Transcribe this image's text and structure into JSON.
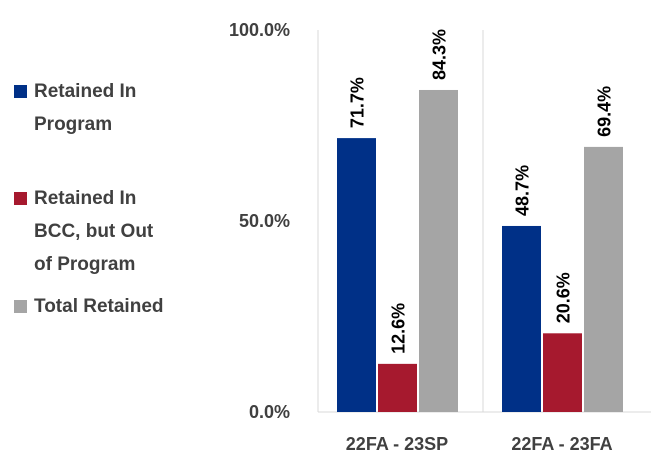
{
  "chart_data": {
    "type": "bar",
    "categories": [
      "22FA - 23SP",
      "22FA - 23FA"
    ],
    "series": [
      {
        "name": "Retained In Program",
        "color": "#003087",
        "values": [
          71.7,
          48.7
        ],
        "value_labels": [
          "71.7%",
          "48.7%"
        ]
      },
      {
        "name": "Retained In BCC, but Out of Program",
        "color": "#A6192E",
        "values": [
          12.6,
          20.6
        ],
        "value_labels": [
          "12.6%",
          "20.6%"
        ]
      },
      {
        "name": "Total Retained",
        "color": "#A5A5A5",
        "values": [
          84.3,
          69.4
        ],
        "value_labels": [
          "84.3%",
          "69.4%"
        ]
      }
    ],
    "ylim": [
      0,
      100
    ],
    "yticks": [
      {
        "value": 0,
        "label": "0.0%"
      },
      {
        "value": 50,
        "label": "50.0%"
      },
      {
        "value": 100,
        "label": "100.0%"
      }
    ],
    "grid": false,
    "legend": "left"
  }
}
